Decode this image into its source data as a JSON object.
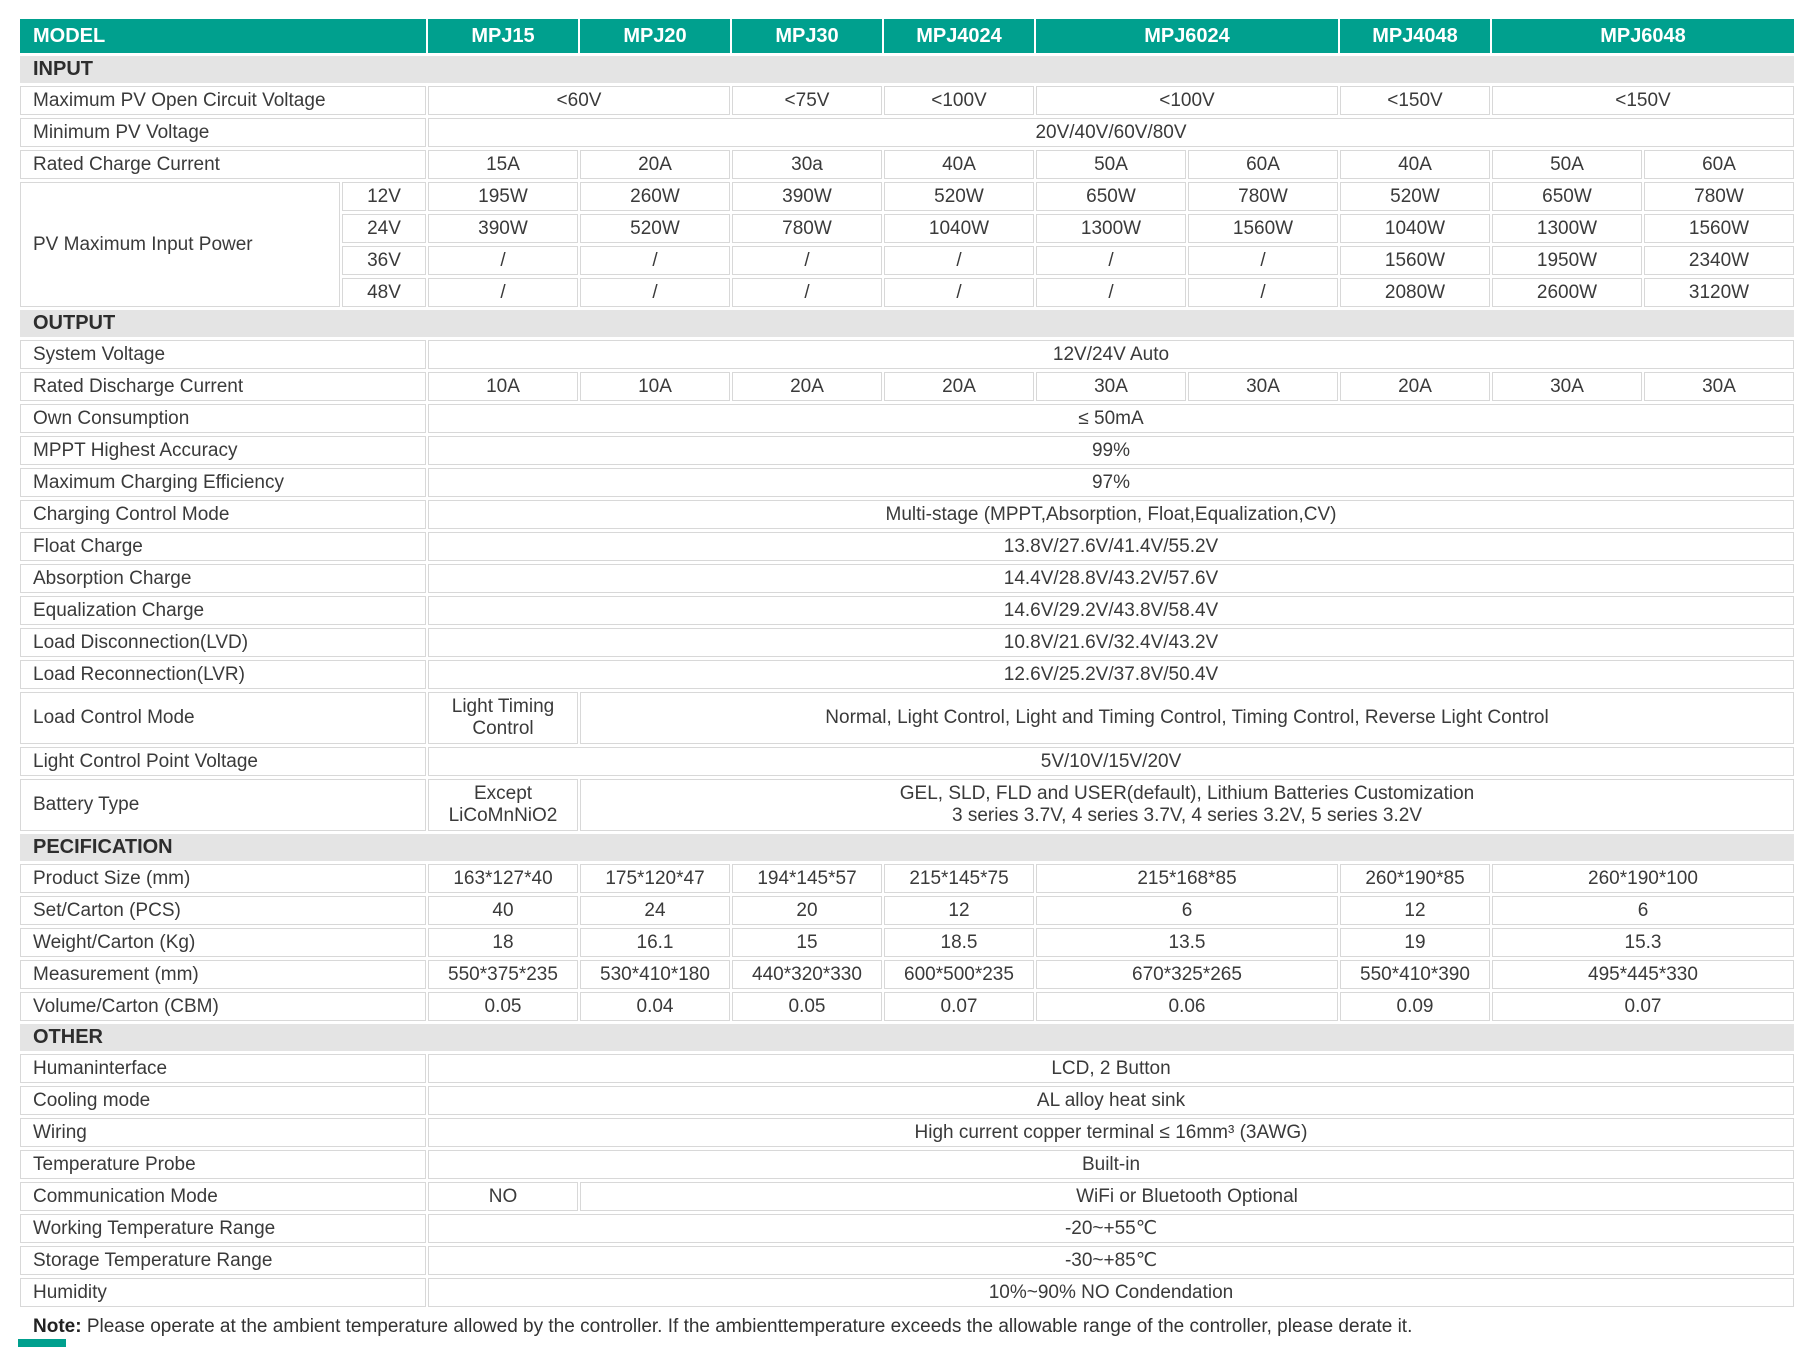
{
  "colors": {
    "accent_teal": "#00A08E",
    "section_gray": "#E4E4E4",
    "border_gray": "#D8D8D8"
  },
  "note": {
    "label": "Note:",
    "text": " Please operate at the ambient temperature allowed by the controller. If the ambienttemperature exceeds the allowable range of the controller, please derate it."
  },
  "table": {
    "rows": [
      {
        "type": "header",
        "cells": [
          {
            "t": "MODEL",
            "s": 2,
            "c": "label"
          },
          {
            "t": "MPJ15"
          },
          {
            "t": "MPJ20"
          },
          {
            "t": "MPJ30"
          },
          {
            "t": "MPJ4024"
          },
          {
            "t": "MPJ6024",
            "s": 2
          },
          {
            "t": "MPJ4048"
          },
          {
            "t": "MPJ6048",
            "s": 2
          }
        ]
      },
      {
        "type": "section",
        "cells": [
          {
            "t": "INPUT",
            "s": 11
          }
        ]
      },
      {
        "type": "data",
        "cells": [
          {
            "t": "Maximum PV Open Circuit Voltage",
            "s": 2,
            "c": "label"
          },
          {
            "t": "<60V",
            "s": 2
          },
          {
            "t": "<75V"
          },
          {
            "t": "<100V"
          },
          {
            "t": "<100V",
            "s": 2
          },
          {
            "t": "<150V"
          },
          {
            "t": "<150V",
            "s": 2
          }
        ]
      },
      {
        "type": "data",
        "cells": [
          {
            "t": "Minimum PV Voltage",
            "s": 2,
            "c": "label"
          },
          {
            "t": "20V/40V/60V/80V",
            "s": 9
          }
        ]
      },
      {
        "type": "data",
        "cells": [
          {
            "t": "Rated Charge Current",
            "s": 2,
            "c": "label"
          },
          {
            "t": "15A"
          },
          {
            "t": "20A"
          },
          {
            "t": "30a"
          },
          {
            "t": "40A"
          },
          {
            "t": "50A"
          },
          {
            "t": "60A"
          },
          {
            "t": "40A"
          },
          {
            "t": "50A"
          },
          {
            "t": "60A"
          }
        ]
      },
      {
        "type": "data",
        "cells": [
          {
            "t": "PV Maximum Input Power",
            "c": "label",
            "r": 4
          },
          {
            "t": "12V",
            "c": "sub"
          },
          {
            "t": "195W"
          },
          {
            "t": "260W"
          },
          {
            "t": "390W"
          },
          {
            "t": "520W"
          },
          {
            "t": "650W"
          },
          {
            "t": "780W"
          },
          {
            "t": "520W"
          },
          {
            "t": "650W"
          },
          {
            "t": "780W"
          }
        ]
      },
      {
        "type": "data",
        "cells": [
          {
            "t": "24V",
            "c": "sub"
          },
          {
            "t": "390W"
          },
          {
            "t": "520W"
          },
          {
            "t": "780W"
          },
          {
            "t": "1040W"
          },
          {
            "t": "1300W"
          },
          {
            "t": "1560W"
          },
          {
            "t": "1040W"
          },
          {
            "t": "1300W"
          },
          {
            "t": "1560W"
          }
        ]
      },
      {
        "type": "data",
        "cells": [
          {
            "t": "36V",
            "c": "sub"
          },
          {
            "t": "/"
          },
          {
            "t": "/"
          },
          {
            "t": "/"
          },
          {
            "t": "/"
          },
          {
            "t": "/"
          },
          {
            "t": "/"
          },
          {
            "t": "1560W"
          },
          {
            "t": "1950W"
          },
          {
            "t": "2340W"
          }
        ]
      },
      {
        "type": "data",
        "cells": [
          {
            "t": "48V",
            "c": "sub"
          },
          {
            "t": "/"
          },
          {
            "t": "/"
          },
          {
            "t": "/"
          },
          {
            "t": "/"
          },
          {
            "t": "/"
          },
          {
            "t": "/"
          },
          {
            "t": "2080W"
          },
          {
            "t": "2600W"
          },
          {
            "t": "3120W"
          }
        ]
      },
      {
        "type": "section",
        "cells": [
          {
            "t": "OUTPUT",
            "s": 11
          }
        ]
      },
      {
        "type": "data",
        "cells": [
          {
            "t": "System Voltage",
            "s": 2,
            "c": "label"
          },
          {
            "t": "12V/24V Auto",
            "s": 9
          }
        ]
      },
      {
        "type": "data",
        "cells": [
          {
            "t": "Rated Discharge Current",
            "s": 2,
            "c": "label"
          },
          {
            "t": "10A"
          },
          {
            "t": "10A"
          },
          {
            "t": "20A"
          },
          {
            "t": "20A"
          },
          {
            "t": "30A"
          },
          {
            "t": "30A"
          },
          {
            "t": "20A"
          },
          {
            "t": "30A"
          },
          {
            "t": "30A"
          }
        ]
      },
      {
        "type": "data",
        "cells": [
          {
            "t": "Own Consumption",
            "s": 2,
            "c": "label"
          },
          {
            "t": "≤ 50mA",
            "s": 9
          }
        ]
      },
      {
        "type": "data",
        "cells": [
          {
            "t": "MPPT Highest Accuracy",
            "s": 2,
            "c": "label"
          },
          {
            "t": "99%",
            "s": 9
          }
        ]
      },
      {
        "type": "data",
        "cells": [
          {
            "t": "Maximum Charging Efficiency",
            "s": 2,
            "c": "label"
          },
          {
            "t": "97%",
            "s": 9
          }
        ]
      },
      {
        "type": "data",
        "cells": [
          {
            "t": "Charging Control Mode",
            "s": 2,
            "c": "label"
          },
          {
            "t": "Multi-stage (MPPT,Absorption, Float,Equalization,CV)",
            "s": 9
          }
        ]
      },
      {
        "type": "data",
        "cells": [
          {
            "t": "Float Charge",
            "s": 2,
            "c": "label"
          },
          {
            "t": "13.8V/27.6V/41.4V/55.2V",
            "s": 9
          }
        ]
      },
      {
        "type": "data",
        "cells": [
          {
            "t": "Absorption Charge",
            "s": 2,
            "c": "label"
          },
          {
            "t": "14.4V/28.8V/43.2V/57.6V",
            "s": 9
          }
        ]
      },
      {
        "type": "data",
        "cells": [
          {
            "t": "Equalization Charge",
            "s": 2,
            "c": "label"
          },
          {
            "t": "14.6V/29.2V/43.8V/58.4V",
            "s": 9
          }
        ]
      },
      {
        "type": "data",
        "cells": [
          {
            "t": "Load Disconnection(LVD)",
            "s": 2,
            "c": "label"
          },
          {
            "t": "10.8V/21.6V/32.4V/43.2V",
            "s": 9
          }
        ]
      },
      {
        "type": "data",
        "cells": [
          {
            "t": "Load Reconnection(LVR)",
            "s": 2,
            "c": "label"
          },
          {
            "t": "12.6V/25.2V/37.8V/50.4V",
            "s": 9
          }
        ]
      },
      {
        "type": "data",
        "tall": true,
        "cells": [
          {
            "t": "Load Control Mode",
            "s": 2,
            "c": "label"
          },
          {
            "t": "Light Timing\nControl"
          },
          {
            "t": "Normal, Light Control, Light and Timing Control, Timing Control, Reverse Light Control",
            "s": 8
          }
        ]
      },
      {
        "type": "data",
        "cells": [
          {
            "t": "Light Control Point Voltage",
            "s": 2,
            "c": "label"
          },
          {
            "t": "5V/10V/15V/20V",
            "s": 9
          }
        ]
      },
      {
        "type": "data",
        "tall": true,
        "cells": [
          {
            "t": "Battery Type",
            "s": 2,
            "c": "label"
          },
          {
            "t": "Except\nLiCoMnNiO2"
          },
          {
            "t": "GEL, SLD, FLD and USER(default), Lithium Batteries Customization\n3 series 3.7V, 4 series 3.7V, 4 series 3.2V, 5 series 3.2V",
            "s": 8
          }
        ]
      },
      {
        "type": "section",
        "cells": [
          {
            "t": "PECIFICATION",
            "s": 11
          }
        ]
      },
      {
        "type": "data",
        "cells": [
          {
            "t": "Product Size (mm)",
            "s": 2,
            "c": "label"
          },
          {
            "t": "163*127*40"
          },
          {
            "t": "175*120*47"
          },
          {
            "t": "194*145*57"
          },
          {
            "t": "215*145*75"
          },
          {
            "t": "215*168*85",
            "s": 2
          },
          {
            "t": "260*190*85"
          },
          {
            "t": "260*190*100",
            "s": 2
          }
        ]
      },
      {
        "type": "data",
        "cells": [
          {
            "t": "Set/Carton (PCS)",
            "s": 2,
            "c": "label"
          },
          {
            "t": "40"
          },
          {
            "t": "24"
          },
          {
            "t": "20"
          },
          {
            "t": "12"
          },
          {
            "t": "6",
            "s": 2
          },
          {
            "t": "12"
          },
          {
            "t": "6",
            "s": 2
          }
        ]
      },
      {
        "type": "data",
        "cells": [
          {
            "t": "Weight/Carton (Kg)",
            "s": 2,
            "c": "label"
          },
          {
            "t": "18"
          },
          {
            "t": "16.1"
          },
          {
            "t": "15"
          },
          {
            "t": "18.5"
          },
          {
            "t": "13.5",
            "s": 2
          },
          {
            "t": "19"
          },
          {
            "t": "15.3",
            "s": 2
          }
        ]
      },
      {
        "type": "data",
        "cells": [
          {
            "t": "Measurement (mm)",
            "s": 2,
            "c": "label"
          },
          {
            "t": "550*375*235"
          },
          {
            "t": "530*410*180"
          },
          {
            "t": "440*320*330"
          },
          {
            "t": "600*500*235"
          },
          {
            "t": "670*325*265",
            "s": 2
          },
          {
            "t": "550*410*390"
          },
          {
            "t": "495*445*330",
            "s": 2
          }
        ]
      },
      {
        "type": "data",
        "cells": [
          {
            "t": "Volume/Carton (CBM)",
            "s": 2,
            "c": "label"
          },
          {
            "t": "0.05"
          },
          {
            "t": "0.04"
          },
          {
            "t": "0.05"
          },
          {
            "t": "0.07"
          },
          {
            "t": "0.06",
            "s": 2
          },
          {
            "t": "0.09"
          },
          {
            "t": "0.07",
            "s": 2
          }
        ]
      },
      {
        "type": "section",
        "cells": [
          {
            "t": "OTHER",
            "s": 11
          }
        ]
      },
      {
        "type": "data",
        "cells": [
          {
            "t": "Humaninterface",
            "s": 2,
            "c": "label"
          },
          {
            "t": "LCD, 2 Button",
            "s": 9
          }
        ]
      },
      {
        "type": "data",
        "cells": [
          {
            "t": "Cooling mode",
            "s": 2,
            "c": "label"
          },
          {
            "t": "AL alloy heat sink",
            "s": 9
          }
        ]
      },
      {
        "type": "data",
        "cells": [
          {
            "t": "Wiring",
            "s": 2,
            "c": "label"
          },
          {
            "t": "High current copper terminal ≤ 16mm³ (3AWG)",
            "s": 9
          }
        ]
      },
      {
        "type": "data",
        "cells": [
          {
            "t": "Temperature Probe",
            "s": 2,
            "c": "label"
          },
          {
            "t": "Built-in",
            "s": 9
          }
        ]
      },
      {
        "type": "data",
        "cells": [
          {
            "t": "Communication Mode",
            "s": 2,
            "c": "label"
          },
          {
            "t": "NO"
          },
          {
            "t": "WiFi or Bluetooth Optional",
            "s": 8
          }
        ]
      },
      {
        "type": "data",
        "cells": [
          {
            "t": "Working Temperature Range",
            "s": 2,
            "c": "label"
          },
          {
            "t": "-20~+55℃",
            "s": 9
          }
        ]
      },
      {
        "type": "data",
        "cells": [
          {
            "t": "Storage Temperature Range",
            "s": 2,
            "c": "label"
          },
          {
            "t": "-30~+85℃",
            "s": 9
          }
        ]
      },
      {
        "type": "data",
        "cells": [
          {
            "t": "Humidity",
            "s": 2,
            "c": "label"
          },
          {
            "t": "10%~90% NO Condendation",
            "s": 9
          }
        ]
      }
    ]
  }
}
